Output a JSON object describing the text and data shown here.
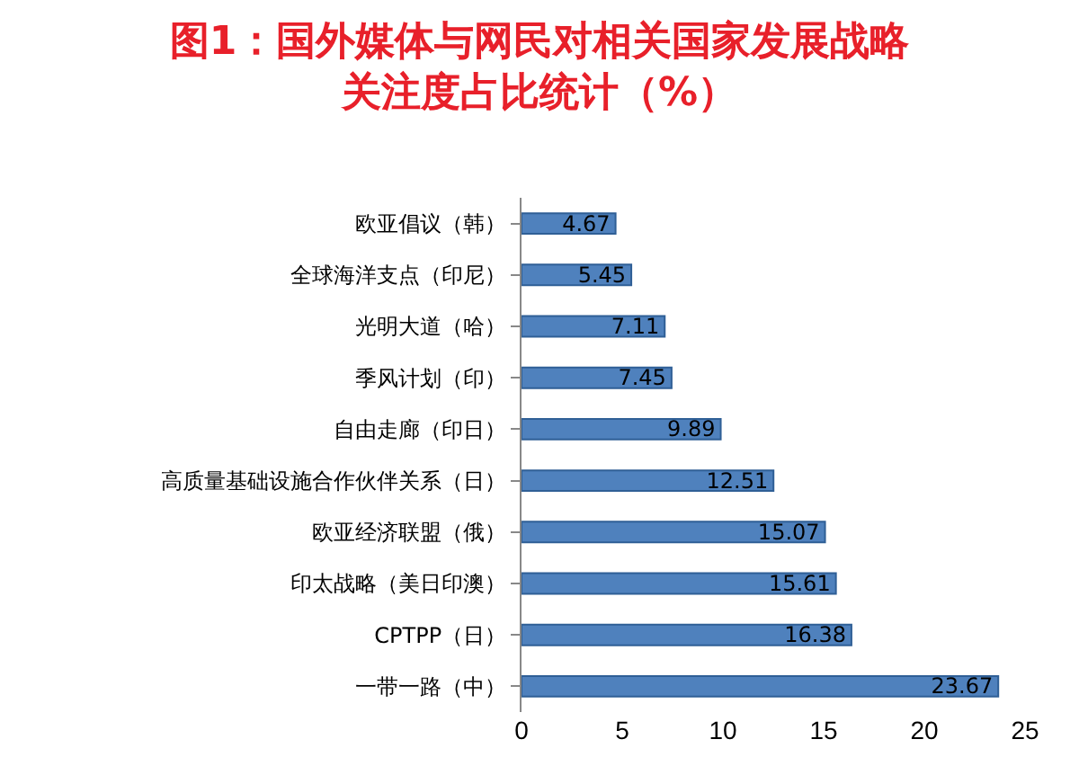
{
  "chart_data": {
    "type": "bar",
    "orientation": "horizontal",
    "title": "图1：国外媒体与网民对相关国家发展战略关注度占比统计（%）",
    "categories": [
      "欧亚倡议（韩）",
      "全球海洋支点（印尼）",
      "光明大道（哈）",
      "季风计划（印）",
      "自由走廊（印日）",
      "高质量基础设施合作伙伴关系（日）",
      "欧亚经济联盟（俄）",
      "印太战略（美日印澳）",
      "CPTPP（日）",
      "一带一路（中）"
    ],
    "values": [
      4.67,
      5.45,
      7.11,
      7.45,
      9.89,
      12.51,
      15.07,
      15.61,
      16.38,
      23.67
    ],
    "color": "#4f81bd",
    "xlim": [
      0,
      25
    ],
    "xticks": [
      0,
      5,
      10,
      15,
      20,
      25
    ],
    "grid": false,
    "data_labels": true
  }
}
